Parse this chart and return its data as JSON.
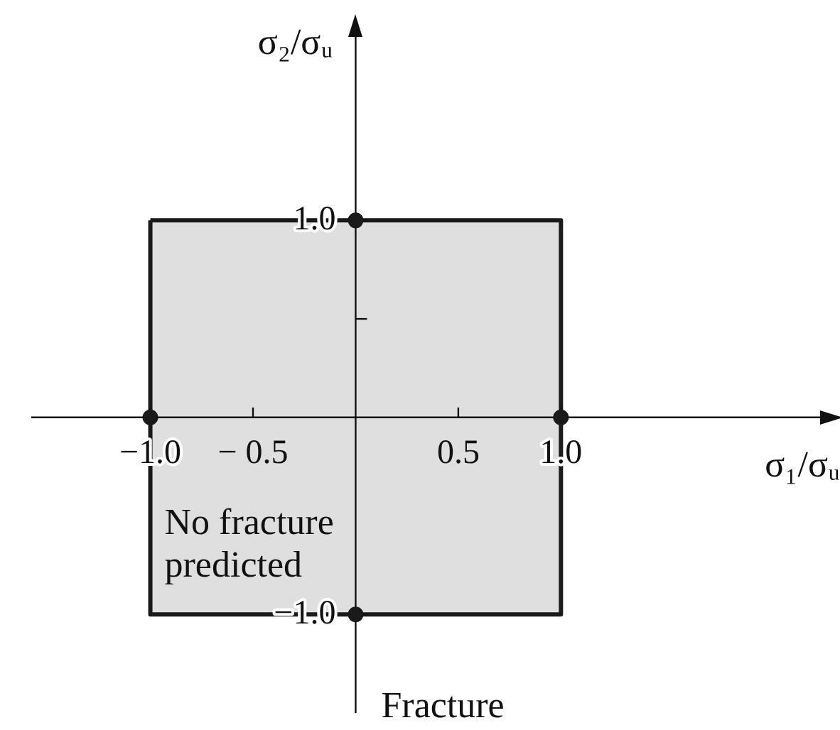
{
  "chart_data": {
    "type": "area",
    "xlabel": "σ₁/σᵤ",
    "ylabel": "σ₂/σᵤ",
    "xlim": [
      -1.58,
      2.29
    ],
    "ylim": [
      -1.5,
      1.96
    ],
    "xticks": [
      {
        "value": -1,
        "label": "−1.0"
      },
      {
        "value": -0.5,
        "label": "− 0.5"
      },
      {
        "value": 0.5,
        "label": "0.5"
      },
      {
        "value": 1,
        "label": "1.0"
      }
    ],
    "yticks": [
      {
        "value": -1,
        "label": "−1.0"
      },
      {
        "value": 0.5,
        "label": null
      },
      {
        "value": 1,
        "label": "1.0"
      }
    ],
    "grid": false,
    "legend": false,
    "series": [
      {
        "type": "area",
        "color": "#1a1a1a",
        "x": [
          -1,
          1,
          1,
          -1,
          -1
        ],
        "values": [
          1,
          1,
          -1,
          -1,
          1
        ]
      },
      {
        "type": "scatter",
        "color": "#1a1a1a",
        "x": [
          0,
          1,
          0,
          -1
        ],
        "values": [
          1,
          0,
          -1,
          0
        ]
      }
    ],
    "annotations": [
      "No fracture\npredicted",
      "Fracture"
    ]
  }
}
